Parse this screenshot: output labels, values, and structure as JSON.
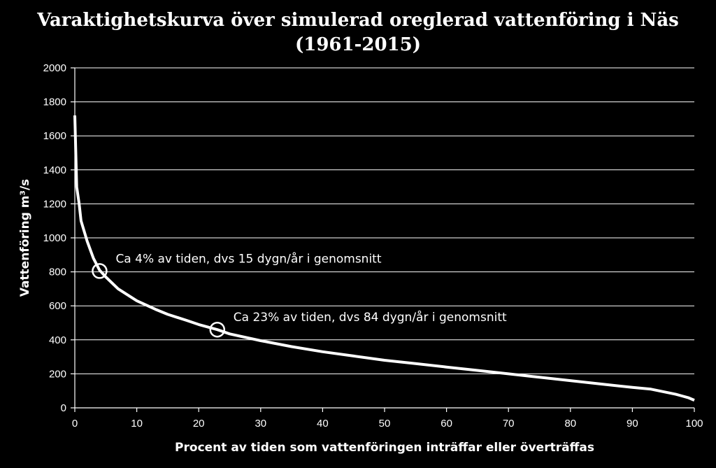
{
  "chart_data": {
    "type": "line",
    "title": "Varaktighetskurva över simulerad oreglerad vattenföring i Näs",
    "subtitle": "(1961-2015)",
    "xlabel": "Procent av tiden som vattenföringen inträffar eller överträffas",
    "ylabel": "Vattenföring m³/s",
    "xlim": [
      0,
      100
    ],
    "ylim": [
      0,
      2000
    ],
    "xticks": [
      "0",
      "10",
      "20",
      "30",
      "40",
      "50",
      "60",
      "70",
      "80",
      "90",
      "100"
    ],
    "yticks": [
      "0",
      "200",
      "400",
      "600",
      "800",
      "1000",
      "1200",
      "1400",
      "1600",
      "1800",
      "2000"
    ],
    "grid": "horizontal",
    "series": [
      {
        "x": [
          0,
          0.3,
          0.7,
          1,
          2,
          3,
          4,
          5,
          7,
          10,
          13,
          15,
          18,
          20,
          23,
          25,
          30,
          35,
          40,
          45,
          50,
          55,
          60,
          65,
          70,
          75,
          80,
          85,
          90,
          93,
          95,
          97,
          98,
          99,
          100
        ],
        "values": [
          1720,
          1300,
          1200,
          1100,
          980,
          880,
          810,
          770,
          700,
          630,
          580,
          550,
          515,
          490,
          460,
          435,
          395,
          360,
          330,
          305,
          280,
          260,
          240,
          220,
          200,
          180,
          160,
          140,
          120,
          110,
          95,
          80,
          70,
          60,
          45
        ]
      }
    ],
    "annotations": [
      {
        "x": 4,
        "y": 805,
        "text": "Ca 4% av tiden, dvs 15 dygn/år i genomsnitt"
      },
      {
        "x": 23,
        "y": 460,
        "text": "Ca 23% av tiden, dvs 84 dygn/år i genomsnitt"
      }
    ]
  }
}
